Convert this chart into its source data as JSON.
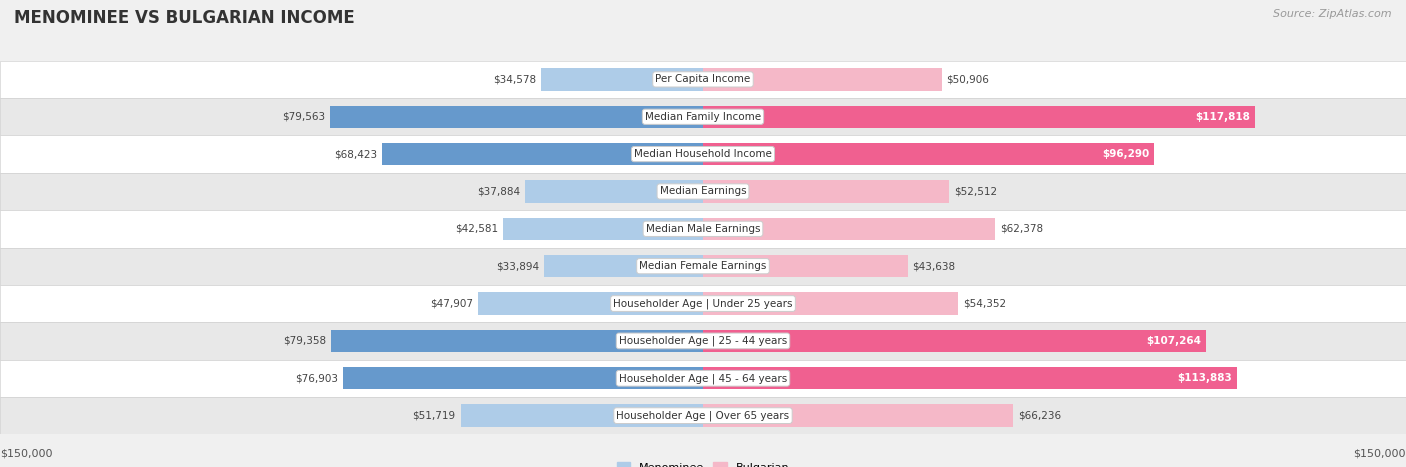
{
  "title": "MENOMINEE VS BULGARIAN INCOME",
  "source": "Source: ZipAtlas.com",
  "categories": [
    "Per Capita Income",
    "Median Family Income",
    "Median Household Income",
    "Median Earnings",
    "Median Male Earnings",
    "Median Female Earnings",
    "Householder Age | Under 25 years",
    "Householder Age | 25 - 44 years",
    "Householder Age | 45 - 64 years",
    "Householder Age | Over 65 years"
  ],
  "menominee_values": [
    34578,
    79563,
    68423,
    37884,
    42581,
    33894,
    47907,
    79358,
    76903,
    51719
  ],
  "bulgarian_values": [
    50906,
    117818,
    96290,
    52512,
    62378,
    43638,
    54352,
    107264,
    113883,
    66236
  ],
  "menominee_labels": [
    "$34,578",
    "$79,563",
    "$68,423",
    "$37,884",
    "$42,581",
    "$33,894",
    "$47,907",
    "$79,358",
    "$76,903",
    "$51,719"
  ],
  "bulgarian_labels": [
    "$50,906",
    "$117,818",
    "$96,290",
    "$52,512",
    "$62,378",
    "$43,638",
    "$54,352",
    "$107,264",
    "$113,883",
    "$66,236"
  ],
  "menominee_color_light": "#aecce8",
  "menominee_color_dark": "#6699cc",
  "bulgarian_color_light": "#f5b8c8",
  "bulgarian_color_dark": "#f06090",
  "max_value": 150000,
  "bar_height": 0.6,
  "bg_color": "#f0f0f0",
  "row_colors": [
    "#ffffff",
    "#e8e8e8"
  ],
  "legend_menominee": "Menominee",
  "legend_bulgarian": "Bulgarian",
  "xlabel_left": "$150,000",
  "xlabel_right": "$150,000",
  "dark_threshold_men": 68000,
  "dark_threshold_bul": 95000
}
